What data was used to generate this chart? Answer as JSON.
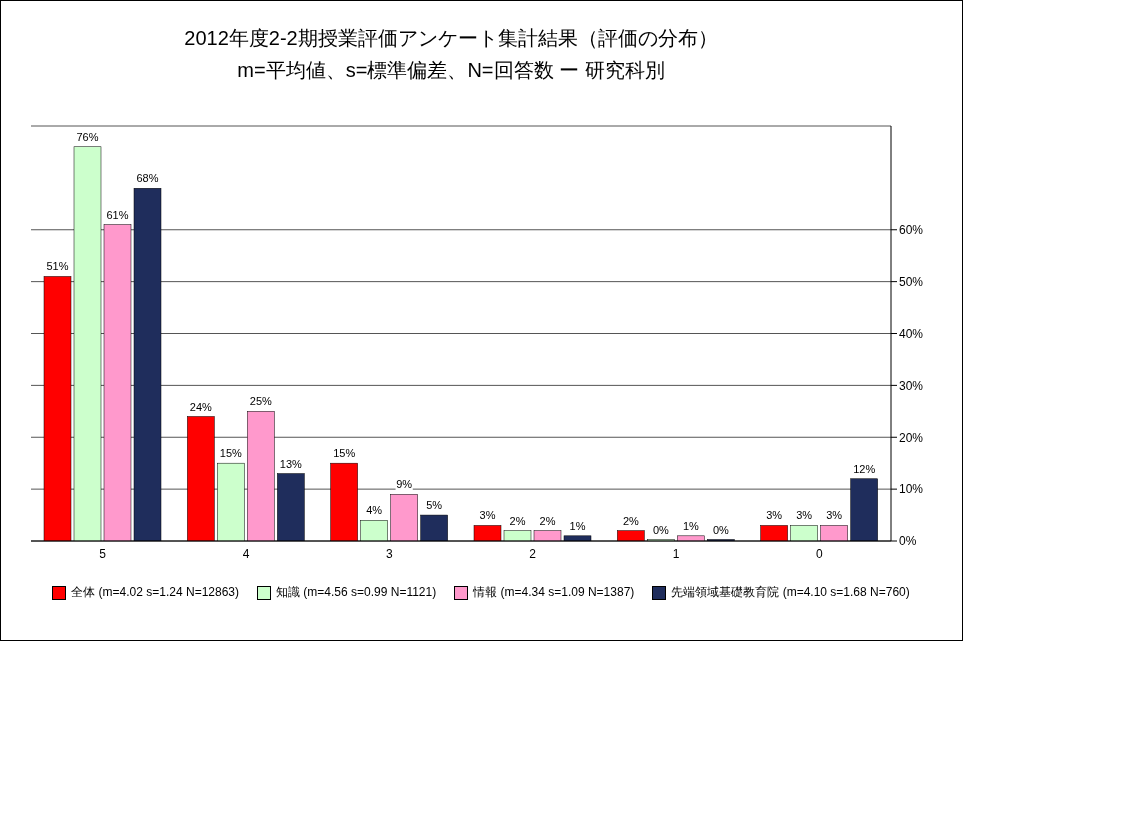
{
  "chart_data": {
    "type": "bar",
    "title": "2012年度2-2期授業評価アンケート集計結果（評価の分布）",
    "subtitle": "m=平均値、s=標準偏差、N=回答数 ー 研究科別",
    "categories": [
      "5",
      "4",
      "3",
      "2",
      "1",
      "0"
    ],
    "series": [
      {
        "name": "全体 (m=4.02 s=1.24 N=12863)",
        "color": "#ff0000",
        "values": [
          51,
          24,
          15,
          3,
          2,
          3
        ],
        "value_labels": [
          "51%",
          "24%",
          "15%",
          "3%",
          "2%",
          "3%"
        ]
      },
      {
        "name": "知識 (m=4.56 s=0.99 N=1121)",
        "color": "#ccffcc",
        "values": [
          76,
          15,
          4,
          2,
          0,
          3
        ],
        "value_labels": [
          "76%",
          "15%",
          "4%",
          "2%",
          "0%",
          "3%"
        ]
      },
      {
        "name": "情報 (m=4.34 s=1.09 N=1387)",
        "color": "#ff99cc",
        "values": [
          61,
          25,
          9,
          2,
          1,
          3
        ],
        "value_labels": [
          "61%",
          "25%",
          "9%",
          "2%",
          "1%",
          "3%"
        ]
      },
      {
        "name": "先端領域基礎教育院 (m=4.10 s=1.68 N=760)",
        "color": "#1f2d5c",
        "values": [
          68,
          13,
          5,
          1,
          0,
          12
        ],
        "value_labels": [
          "68%",
          "13%",
          "5%",
          "1%",
          "0%",
          "12%"
        ]
      }
    ],
    "ylim": [
      0,
      80
    ],
    "yticks": [
      {
        "value": 0,
        "label": "0%"
      },
      {
        "value": 10,
        "label": "10%"
      },
      {
        "value": 20,
        "label": "20%"
      },
      {
        "value": 30,
        "label": "30%"
      },
      {
        "value": 40,
        "label": "40%"
      },
      {
        "value": 50,
        "label": "50%"
      },
      {
        "value": 60,
        "label": "60%"
      }
    ],
    "grid": "y",
    "legend": "bottom"
  }
}
